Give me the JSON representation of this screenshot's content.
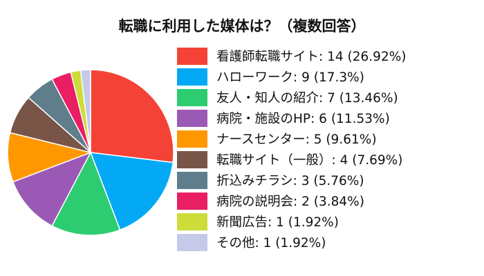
{
  "chart_data": {
    "type": "pie",
    "title": "転職に利用した媒体は？（複数回答）",
    "legend_position": "right",
    "slices": [
      {
        "label": "看護師転職サイト: 14 (26.92%)",
        "name": "看護師転職サイト",
        "value": 14,
        "percent": 26.92,
        "color": "#f44336"
      },
      {
        "label": "ハローワーク: 9 (17.3%)",
        "name": "ハローワーク",
        "value": 9,
        "percent": 17.3,
        "color": "#03a9f4"
      },
      {
        "label": "友人・知人の紹介: 7 (13.46%)",
        "name": "友人・知人の紹介",
        "value": 7,
        "percent": 13.46,
        "color": "#2ecc71"
      },
      {
        "label": "病院・施設のHP: 6 (11.53%)",
        "name": "病院・施設のHP",
        "value": 6,
        "percent": 11.53,
        "color": "#9b59b6"
      },
      {
        "label": "ナースセンター: 5 (9.61%)",
        "name": "ナースセンター",
        "value": 5,
        "percent": 9.61,
        "color": "#ff9800"
      },
      {
        "label": "転職サイト（一般）: 4 (7.69%)",
        "name": "転職サイト（一般）",
        "value": 4,
        "percent": 7.69,
        "color": "#795548"
      },
      {
        "label": "折込みチラシ: 3 (5.76%)",
        "name": "折込みチラシ",
        "value": 3,
        "percent": 5.76,
        "color": "#607d8b"
      },
      {
        "label": "病院の説明会: 2 (3.84%)",
        "name": "病院の説明会",
        "value": 2,
        "percent": 3.84,
        "color": "#e91e63"
      },
      {
        "label": "新聞広告: 1 (1.92%)",
        "name": "新聞広告",
        "value": 1,
        "percent": 1.92,
        "color": "#cddc39"
      },
      {
        "label": "その他: 1 (1.92%)",
        "name": "その他",
        "value": 1,
        "percent": 1.92,
        "color": "#c5cae9"
      }
    ]
  }
}
